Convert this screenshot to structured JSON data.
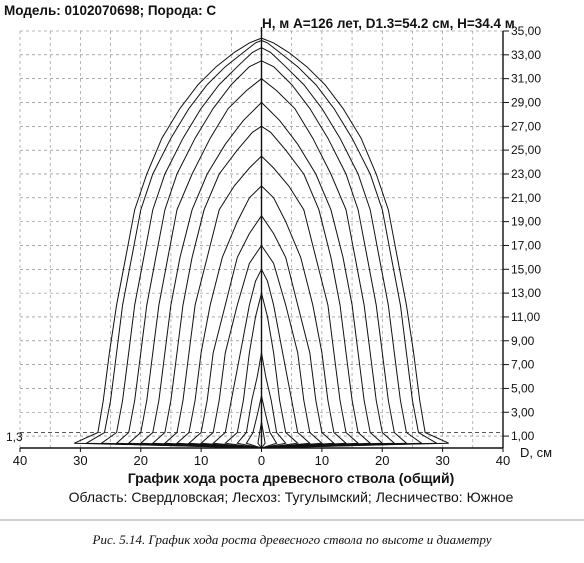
{
  "header": {
    "text": "Модель: 0102070698; Порода: С"
  },
  "chart_data": {
    "type": "line",
    "title": "Модель: 0102070698; Порода: С",
    "subtitle": "Н, м   А=126 лет, D1.3=54.2 см, Н=34.4 м",
    "xlabel": "D, см",
    "ylabel": "Н, м",
    "chart_title": "График хода роста древесного ствола (общий)",
    "region_line": "Область: Свердловская; Лесхоз: Тугулымский; Лесничество: Южное",
    "x_ticks": [
      "40",
      "30",
      "20",
      "10",
      "0",
      "10",
      "20",
      "30",
      "40"
    ],
    "x_tick_values": [
      -40,
      -30,
      -20,
      -10,
      0,
      10,
      20,
      30,
      40
    ],
    "y_ticks": [
      "1,00",
      "3,00",
      "5,00",
      "7,00",
      "9,00",
      "11,00",
      "13,00",
      "15,00",
      "17,00",
      "19,00",
      "21,00",
      "23,00",
      "25,00",
      "27,00",
      "29,00",
      "31,00",
      "33,00",
      "35,00"
    ],
    "y_tick_values": [
      1,
      3,
      5,
      7,
      9,
      11,
      13,
      15,
      17,
      19,
      21,
      23,
      25,
      27,
      29,
      31,
      33,
      35
    ],
    "marker_label": "1,3",
    "marker_value": 1.3,
    "xlim": [
      -40,
      40
    ],
    "ylim": [
      0,
      35
    ],
    "grid": true,
    "series": [
      {
        "x": [
          0,
          0.6,
          0.3,
          0
        ],
        "y": [
          0,
          0.4,
          1.3,
          2.2
        ]
      },
      {
        "x": [
          0,
          2.5,
          1.4,
          0.6,
          0
        ],
        "y": [
          0,
          0.4,
          1.3,
          3.0,
          4.4
        ]
      },
      {
        "x": [
          0,
          4.0,
          2.5,
          1.6,
          0.7,
          0
        ],
        "y": [
          0,
          0.4,
          1.3,
          4.0,
          6.0,
          8.0
        ]
      },
      {
        "x": [
          0,
          6.0,
          4.0,
          3.0,
          2.0,
          1.0,
          0
        ],
        "y": [
          0,
          0.4,
          1.3,
          4.0,
          8.0,
          11.0,
          13.0
        ]
      },
      {
        "x": [
          0,
          8.0,
          6.0,
          5.0,
          3.5,
          2.0,
          1.0,
          0
        ],
        "y": [
          0,
          0.4,
          1.3,
          4.0,
          8.0,
          12.0,
          14.0,
          15.0
        ]
      },
      {
        "x": [
          0,
          10.0,
          8.0,
          7.0,
          6.0,
          4.0,
          2.0,
          0
        ],
        "y": [
          0,
          0.4,
          1.3,
          4.0,
          8.0,
          12.0,
          15.5,
          17.0
        ]
      },
      {
        "x": [
          0,
          12.0,
          10.0,
          9.0,
          8.0,
          6.0,
          4.0,
          2.0,
          0
        ],
        "y": [
          0,
          0.4,
          1.3,
          4.0,
          8.0,
          12.0,
          16.0,
          18.0,
          19.5
        ]
      },
      {
        "x": [
          0,
          14.0,
          12.0,
          11.0,
          10.0,
          8.5,
          6.5,
          4.0,
          2.0,
          0
        ],
        "y": [
          0,
          0.4,
          1.3,
          4.0,
          8.0,
          12.0,
          16.0,
          19.0,
          21.0,
          22.0
        ]
      },
      {
        "x": [
          0,
          16.0,
          14.0,
          13.0,
          12.0,
          11.0,
          9.0,
          7.0,
          4.5,
          2.0,
          0
        ],
        "y": [
          0,
          0.4,
          1.3,
          4.0,
          8.0,
          12.0,
          16.0,
          20.0,
          22.0,
          23.5,
          24.5
        ]
      },
      {
        "x": [
          0,
          18.0,
          16.0,
          15.0,
          14.0,
          13.0,
          11.5,
          9.5,
          7.0,
          4.0,
          1.5,
          0
        ],
        "y": [
          0,
          0.4,
          1.3,
          4.0,
          8.0,
          12.0,
          16.0,
          20.0,
          23.0,
          25.0,
          26.5,
          27.0
        ]
      },
      {
        "x": [
          0,
          20.0,
          18.0,
          17.0,
          16.0,
          15.0,
          13.5,
          11.5,
          9.0,
          6.0,
          3.0,
          1.0,
          0
        ],
        "y": [
          0,
          0.4,
          1.3,
          4.0,
          8.0,
          12.0,
          16.0,
          20.0,
          23.0,
          25.5,
          27.5,
          28.5,
          29.0
        ]
      },
      {
        "x": [
          0,
          22.0,
          20.0,
          19.0,
          18.0,
          17.0,
          15.5,
          14.0,
          11.5,
          8.5,
          5.5,
          2.5,
          0
        ],
        "y": [
          0,
          0.4,
          1.3,
          4.0,
          8.0,
          12.0,
          16.0,
          20.0,
          23.0,
          26.0,
          28.5,
          30.0,
          31.0
        ]
      },
      {
        "x": [
          0,
          24.0,
          22.0,
          21.0,
          20.0,
          19.0,
          17.5,
          16.0,
          14.0,
          11.0,
          8.0,
          5.0,
          2.0,
          0
        ],
        "y": [
          0,
          0.4,
          1.3,
          4.0,
          8.0,
          12.0,
          16.0,
          20.0,
          23.0,
          26.0,
          28.5,
          30.5,
          32.0,
          32.5
        ]
      },
      {
        "x": [
          0,
          26.5,
          24.0,
          23.0,
          22.0,
          21.0,
          19.5,
          18.0,
          16.0,
          13.0,
          10.0,
          7.0,
          4.0,
          1.5,
          0
        ],
        "y": [
          0,
          0.4,
          1.3,
          4.0,
          8.0,
          12.0,
          16.0,
          20.0,
          23.0,
          26.0,
          28.5,
          30.5,
          32.0,
          33.2,
          33.6
        ]
      },
      {
        "x": [
          0,
          29.0,
          26.0,
          25.0,
          24.0,
          23.0,
          21.5,
          20.0,
          18.0,
          15.0,
          12.0,
          9.0,
          6.0,
          3.0,
          1.0,
          0
        ],
        "y": [
          0,
          0.4,
          1.3,
          4.0,
          8.0,
          12.0,
          16.0,
          20.0,
          23.0,
          26.0,
          28.5,
          30.5,
          32.0,
          33.2,
          34.0,
          34.2
        ]
      },
      {
        "x": [
          0,
          31.0,
          27.1,
          26.2,
          25.2,
          24.0,
          22.5,
          21.0,
          19.0,
          16.5,
          13.5,
          10.5,
          7.5,
          4.5,
          2.0,
          0
        ],
        "y": [
          0,
          0.4,
          1.3,
          4.0,
          8.0,
          12.0,
          16.0,
          20.0,
          23.0,
          26.0,
          28.5,
          30.5,
          32.0,
          33.2,
          34.0,
          34.4
        ]
      }
    ]
  }
}
